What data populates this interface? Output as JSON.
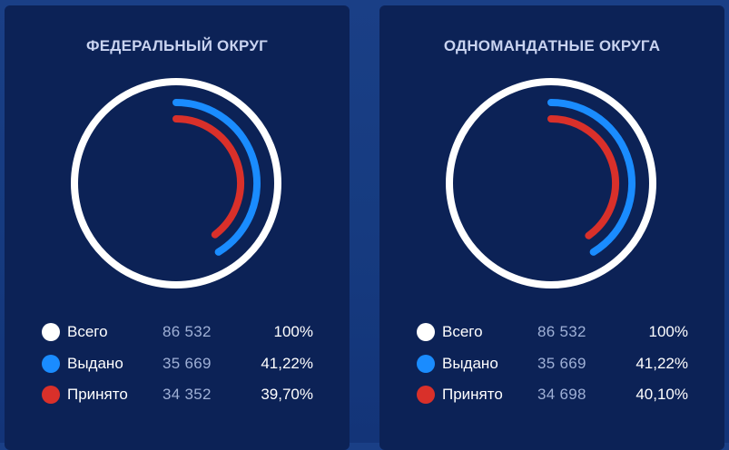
{
  "colors": {
    "total": "#ffffff",
    "issued": "#1a8cff",
    "accepted": "#d9302a"
  },
  "chart_data": [
    {
      "type": "radial-bar",
      "title": "ФЕДЕРАЛЬНЫЙ ОКРУГ",
      "series": [
        {
          "name": "Всего",
          "count": "86 532",
          "percent_label": "100%",
          "value": 100,
          "color": "#ffffff"
        },
        {
          "name": "Выдано",
          "count": "35 669",
          "percent_label": "41,22%",
          "value": 41.22,
          "color": "#1a8cff"
        },
        {
          "name": "Принято",
          "count": "34 352",
          "percent_label": "39,70%",
          "value": 39.7,
          "color": "#d9302a"
        }
      ]
    },
    {
      "type": "radial-bar",
      "title": "ОДНОМАНДАТНЫЕ ОКРУГА",
      "series": [
        {
          "name": "Всего",
          "count": "86 532",
          "percent_label": "100%",
          "value": 100,
          "color": "#ffffff"
        },
        {
          "name": "Выдано",
          "count": "35 669",
          "percent_label": "41,22%",
          "value": 41.22,
          "color": "#1a8cff"
        },
        {
          "name": "Принято",
          "count": "34 698",
          "percent_label": "40,10%",
          "value": 40.1,
          "color": "#d9302a"
        }
      ]
    }
  ]
}
